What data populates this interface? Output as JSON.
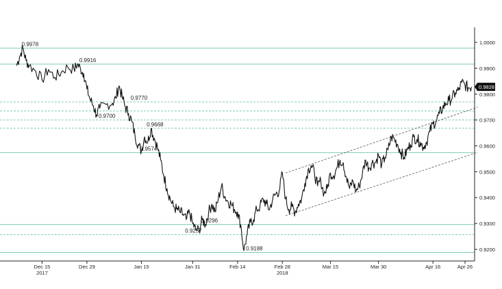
{
  "chart_data": {
    "type": "line",
    "title": "",
    "xlabel": "",
    "ylabel": "",
    "ylim": [
      0.9155,
      1.0045
    ],
    "grid": false,
    "colors": {
      "price": "#111111",
      "level_line": "#7dc9b8",
      "channel": "#555555",
      "last_tag_bg": "#111111",
      "last_tag_text": "#ffffff"
    },
    "x_ticks": [
      {
        "label": "Dec 15",
        "x": 8
      },
      {
        "label": "Dec 29",
        "x": 22
      },
      {
        "label": "Jan 15",
        "x": 39
      },
      {
        "label": "Jan 31",
        "x": 55
      },
      {
        "label": "Feb 14",
        "x": 69
      },
      {
        "label": "Feb 28",
        "x": 83
      },
      {
        "label": "Mar 15",
        "x": 98
      },
      {
        "label": "Mar 30",
        "x": 113
      },
      {
        "label": "Apr 16",
        "x": 130
      },
      {
        "label": "Apr 26",
        "x": 140
      }
    ],
    "year_labels": [
      {
        "label": "2017",
        "x": 8
      },
      {
        "label": "2018",
        "x": 83
      }
    ],
    "y_ticks": [
      {
        "label": "1.0000",
        "value": 1.0
      },
      {
        "label": "0.9900",
        "value": 0.99
      },
      {
        "label": "0.9800",
        "value": 0.98
      },
      {
        "label": "0.9700",
        "value": 0.97
      },
      {
        "label": "0.9600",
        "value": 0.96
      },
      {
        "label": "0.9500",
        "value": 0.95
      },
      {
        "label": "0.9400",
        "value": 0.94
      },
      {
        "label": "0.9300",
        "value": 0.93
      },
      {
        "label": "0.9200",
        "value": 0.92
      }
    ],
    "last_value": {
      "label": "0.9828",
      "value": 0.9828
    },
    "levels": [
      {
        "value": 0.9978,
        "style": "solid"
      },
      {
        "value": 0.9916,
        "style": "solid"
      },
      {
        "value": 0.977,
        "style": "dashed"
      },
      {
        "value": 0.9735,
        "style": "dashed"
      },
      {
        "value": 0.97,
        "style": "dashed"
      },
      {
        "value": 0.9668,
        "style": "dashed"
      },
      {
        "value": 0.9574,
        "style": "solid"
      },
      {
        "value": 0.9296,
        "style": "solid"
      },
      {
        "value": 0.9257,
        "style": "dashed"
      },
      {
        "value": 0.9188,
        "style": "solid"
      }
    ],
    "annotations": [
      {
        "label": "0.9978",
        "x": 1,
        "y": 0.9978
      },
      {
        "label": "0.9916",
        "x": 19,
        "y": 0.9916
      },
      {
        "label": "0.9770",
        "x": 35,
        "y": 0.977
      },
      {
        "label": "0.9700",
        "x": 25,
        "y": 0.97
      },
      {
        "label": "0.9668",
        "x": 40,
        "y": 0.9668
      },
      {
        "label": "0.9574",
        "x": 38,
        "y": 0.9574
      },
      {
        "label": "0.9296",
        "x": 57,
        "y": 0.9296
      },
      {
        "label": "0.9257",
        "x": 52,
        "y": 0.9257
      },
      {
        "label": "0.9188",
        "x": 71,
        "y": 0.9188
      }
    ],
    "channel": [
      {
        "x0": 84,
        "y0": 0.9495,
        "x1": 144,
        "y1": 0.975
      },
      {
        "x0": 84,
        "y0": 0.933,
        "x1": 144,
        "y1": 0.9575
      }
    ],
    "series": [
      {
        "x": [
          0,
          1,
          2,
          3,
          4,
          6,
          8,
          10,
          12,
          14,
          16,
          18,
          19,
          20,
          21,
          22,
          23,
          24,
          25,
          26,
          28,
          30,
          31,
          32,
          33,
          34,
          35,
          36,
          37,
          38,
          39,
          40,
          41,
          42,
          43,
          44,
          45,
          46,
          47,
          48,
          49,
          50,
          51,
          52,
          53,
          54,
          55,
          56,
          57,
          58,
          59,
          60,
          61,
          62,
          63,
          64,
          65,
          66,
          67,
          68,
          69,
          70,
          71,
          72,
          73,
          74,
          75,
          76,
          77,
          78,
          79,
          80,
          81,
          82,
          83,
          84,
          85,
          86,
          87,
          88,
          89,
          90,
          91,
          92,
          93,
          94,
          95,
          96,
          97,
          98,
          99,
          100,
          101,
          102,
          103,
          104,
          105,
          106,
          107,
          108,
          109,
          110,
          111,
          112,
          113,
          114,
          115,
          116,
          117,
          118,
          119,
          120,
          121,
          122,
          123,
          124,
          125,
          126,
          127,
          128,
          129,
          130,
          131,
          132,
          133,
          134,
          135,
          136,
          137,
          138,
          139,
          140,
          141,
          142
        ],
        "values": [
          0.991,
          0.9945,
          0.9978,
          0.993,
          0.991,
          0.989,
          0.9855,
          0.9895,
          0.9865,
          0.9885,
          0.9905,
          0.9895,
          0.9916,
          0.9898,
          0.988,
          0.982,
          0.978,
          0.9755,
          0.972,
          0.9745,
          0.976,
          0.9765,
          0.9785,
          0.9832,
          0.979,
          0.975,
          0.9725,
          0.9695,
          0.964,
          0.9605,
          0.958,
          0.9635,
          0.9615,
          0.9668,
          0.963,
          0.9595,
          0.9545,
          0.9485,
          0.9435,
          0.9395,
          0.9365,
          0.9355,
          0.9345,
          0.9335,
          0.9315,
          0.9345,
          0.93,
          0.9275,
          0.9275,
          0.9315,
          0.9296,
          0.9345,
          0.9375,
          0.9345,
          0.9395,
          0.9445,
          0.9405,
          0.9385,
          0.9375,
          0.9355,
          0.9345,
          0.9295,
          0.9195,
          0.9258,
          0.9305,
          0.9315,
          0.9355,
          0.9365,
          0.9395,
          0.9375,
          0.9355,
          0.9395,
          0.9415,
          0.9425,
          0.9495,
          0.9395,
          0.9355,
          0.9365,
          0.9345,
          0.9375,
          0.9395,
          0.9455,
          0.9505,
          0.9525,
          0.9495,
          0.9445,
          0.9465,
          0.9415,
          0.9435,
          0.9495,
          0.9485,
          0.9515,
          0.9545,
          0.9535,
          0.9475,
          0.9435,
          0.9465,
          0.9425,
          0.9445,
          0.9495,
          0.9545,
          0.9515,
          0.9535,
          0.9535,
          0.9565,
          0.9525,
          0.9555,
          0.9585,
          0.9635,
          0.9625,
          0.9605,
          0.9575,
          0.9555,
          0.9585,
          0.9605,
          0.9635,
          0.9625,
          0.9615,
          0.9595,
          0.9615,
          0.9655,
          0.9685,
          0.9695,
          0.9725,
          0.9745,
          0.9765,
          0.9775,
          0.9785,
          0.9805,
          0.9815,
          0.9845,
          0.9835,
          0.9825,
          0.9828
        ]
      }
    ]
  }
}
